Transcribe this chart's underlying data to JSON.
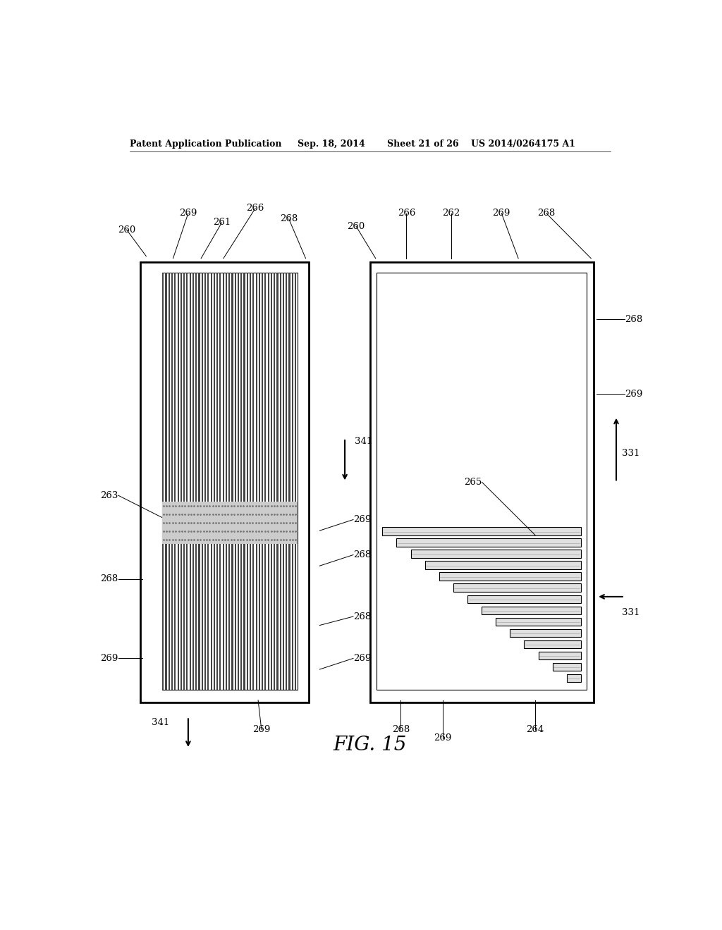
{
  "bg_color": "#ffffff",
  "header_text": "Patent Application Publication",
  "header_date": "Sep. 18, 2014",
  "header_sheet": "Sheet 21 of 26",
  "header_patent": "US 2014/0264175 A1",
  "fig_label": "FIG. 15"
}
